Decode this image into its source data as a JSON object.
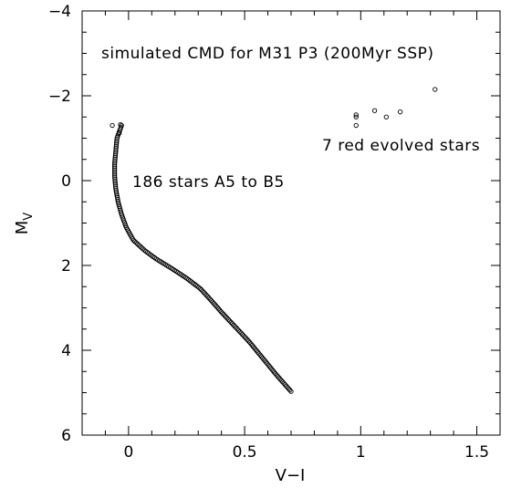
{
  "chart_data": {
    "type": "scatter",
    "title": "simulated CMD for M31 P3 (200Myr SSP)",
    "xlabel": "V−I",
    "ylabel": "M",
    "ylabel_subscript": "V",
    "xlim": [
      -0.2,
      1.6
    ],
    "ylim": [
      6,
      -4
    ],
    "y_inverted": true,
    "x_ticks": [
      0,
      0.5,
      1,
      1.5
    ],
    "x_tick_labels": [
      "0",
      "0.5",
      "1",
      "1.5"
    ],
    "x_minor_step": 0.1,
    "y_ticks": [
      -4,
      -2,
      0,
      2,
      4,
      6
    ],
    "y_tick_labels": [
      "−4",
      "−2",
      "0",
      "2",
      "4",
      "6"
    ],
    "y_minor_step": 0.5,
    "grid": false,
    "annotations": {
      "main_sequence": "186 stars A5 to B5",
      "red_stars": "7 red evolved stars"
    },
    "series": [
      {
        "marker": "open-circle",
        "group": "main_sequence",
        "count": 186,
        "curve": [
          [
            -0.03,
            -1.3
          ],
          [
            -0.05,
            -1.0
          ],
          [
            -0.055,
            -0.7
          ],
          [
            -0.06,
            -0.4
          ],
          [
            -0.06,
            -0.1
          ],
          [
            -0.055,
            0.2
          ],
          [
            -0.045,
            0.5
          ],
          [
            -0.03,
            0.8
          ],
          [
            -0.01,
            1.1
          ],
          [
            0.02,
            1.4
          ],
          [
            0.07,
            1.65
          ],
          [
            0.12,
            1.85
          ],
          [
            0.18,
            2.05
          ],
          [
            0.25,
            2.3
          ],
          [
            0.31,
            2.55
          ],
          [
            0.36,
            2.85
          ],
          [
            0.4,
            3.1
          ],
          [
            0.46,
            3.45
          ],
          [
            0.52,
            3.8
          ],
          [
            0.58,
            4.2
          ],
          [
            0.64,
            4.6
          ],
          [
            0.7,
            4.97
          ]
        ]
      },
      {
        "marker": "open-circle",
        "group": "main_sequence_top",
        "points": [
          [
            -0.07,
            -1.3
          ],
          [
            -0.035,
            -1.32
          ],
          [
            -0.04,
            -1.12
          ]
        ]
      },
      {
        "marker": "open-circle",
        "group": "red_evolved",
        "points": [
          [
            0.98,
            -1.5
          ],
          [
            0.98,
            -1.55
          ],
          [
            0.98,
            -1.3
          ],
          [
            1.06,
            -1.65
          ],
          [
            1.11,
            -1.5
          ],
          [
            1.17,
            -1.62
          ],
          [
            1.32,
            -2.15
          ]
        ]
      }
    ]
  }
}
